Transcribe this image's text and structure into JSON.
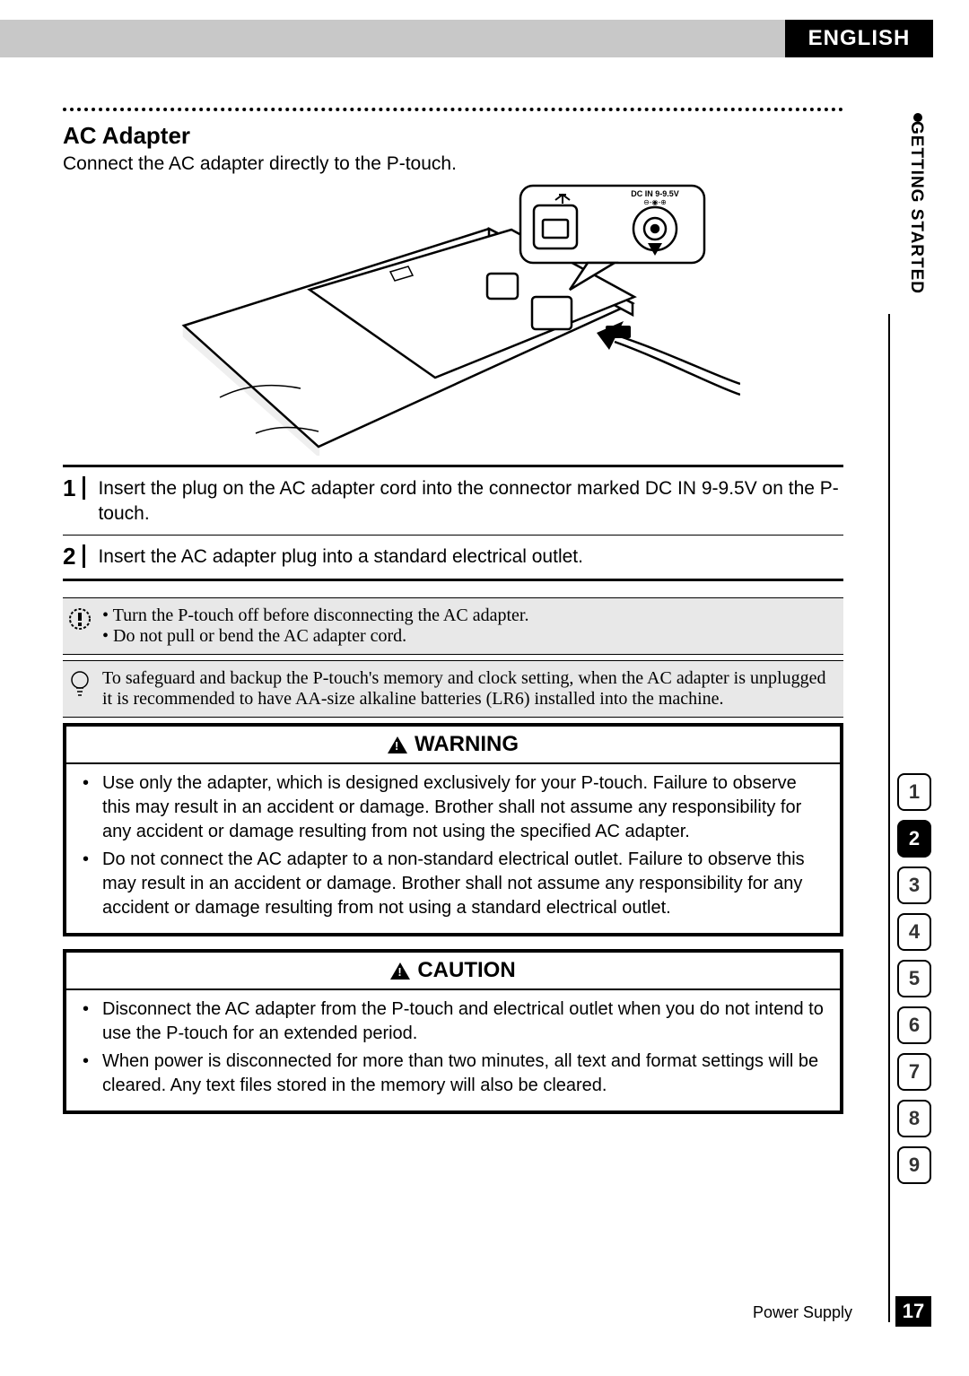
{
  "header": {
    "language": "ENGLISH",
    "section": "GETTING STARTED"
  },
  "title": "AC Adapter",
  "intro": "Connect the AC adapter directly to the P-touch.",
  "callout_label": "DC IN 9-9.5V",
  "steps": [
    "Insert the plug on the AC adapter cord into the connector marked DC IN 9-9.5V on the P-touch.",
    "Insert the AC adapter plug into a standard electrical outlet."
  ],
  "note_warn": [
    "Turn the P-touch off before disconnecting the AC adapter.",
    "Do not pull or bend the AC adapter cord."
  ],
  "note_tip": "To safeguard and backup the P-touch's memory and clock setting, when the AC adapter is unplugged it is recommended to have AA-size alkaline batteries (LR6) installed into the machine.",
  "warning": {
    "title": "WARNING",
    "items": [
      "Use only the adapter, which is designed exclusively for your P-touch. Failure to observe this may result in an accident or damage. Brother shall not assume any responsibility for any accident or damage resulting from not using the specified AC adapter.",
      "Do not connect the AC adapter to a non-standard electrical outlet. Failure to observe this may result in an accident or damage. Brother shall not assume any responsibility for any accident or damage resulting from not using a standard electrical outlet."
    ]
  },
  "caution": {
    "title": "CAUTION",
    "items": [
      "Disconnect the AC adapter from the P-touch and electrical outlet when you do not intend to use the P-touch for an extended period.",
      "When power is disconnected for more than two minutes, all text and format settings will be cleared. Any text files stored in the memory will also be cleared."
    ]
  },
  "tabs": {
    "items": [
      "1",
      "2",
      "3",
      "4",
      "5",
      "6",
      "7",
      "8",
      "9"
    ],
    "active_index": 1
  },
  "footer": {
    "label": "Power Supply",
    "page": "17"
  },
  "colors": {
    "grey": "#c8c8c8",
    "note_bg": "#e8e8e8"
  }
}
